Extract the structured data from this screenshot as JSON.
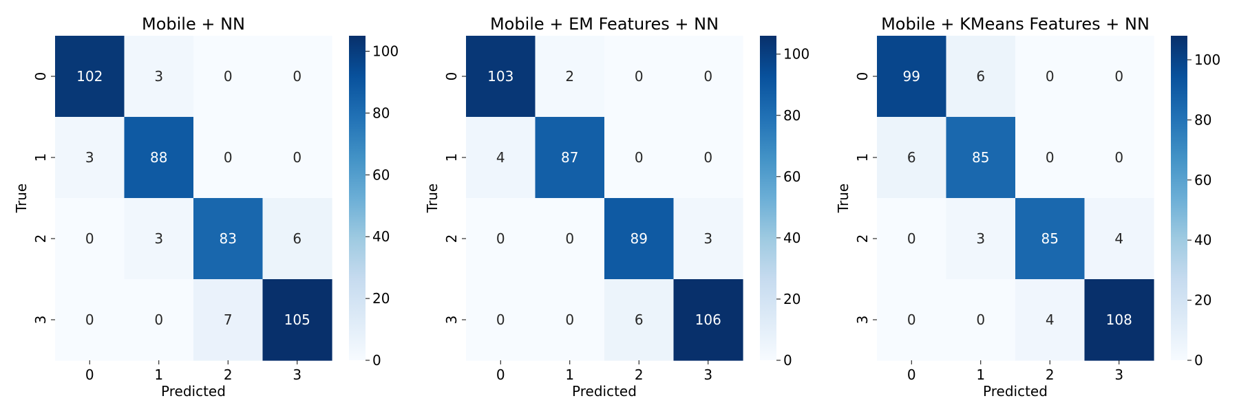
{
  "chart_data": [
    {
      "type": "heatmap",
      "title": "Mobile + NN",
      "xlabel": "Predicted",
      "ylabel": "True",
      "x_categories": [
        "0",
        "1",
        "2",
        "3"
      ],
      "y_categories": [
        "0",
        "1",
        "2",
        "3"
      ],
      "values": [
        [
          102,
          3,
          0,
          0
        ],
        [
          3,
          88,
          0,
          0
        ],
        [
          0,
          3,
          83,
          6
        ],
        [
          0,
          0,
          7,
          105
        ]
      ],
      "colorbar": {
        "range": [
          0,
          105
        ],
        "ticks": [
          0,
          20,
          40,
          60,
          80,
          100
        ]
      }
    },
    {
      "type": "heatmap",
      "title": "Mobile + EM Features + NN",
      "xlabel": "Predicted",
      "ylabel": "True",
      "x_categories": [
        "0",
        "1",
        "2",
        "3"
      ],
      "y_categories": [
        "0",
        "1",
        "2",
        "3"
      ],
      "values": [
        [
          103,
          2,
          0,
          0
        ],
        [
          4,
          87,
          0,
          0
        ],
        [
          0,
          0,
          89,
          3
        ],
        [
          0,
          0,
          6,
          106
        ]
      ],
      "colorbar": {
        "range": [
          0,
          106
        ],
        "ticks": [
          0,
          20,
          40,
          60,
          80,
          100
        ]
      }
    },
    {
      "type": "heatmap",
      "title": "Mobile + KMeans Features + NN",
      "xlabel": "Predicted",
      "ylabel": "True",
      "x_categories": [
        "0",
        "1",
        "2",
        "3"
      ],
      "y_categories": [
        "0",
        "1",
        "2",
        "3"
      ],
      "values": [
        [
          99,
          6,
          0,
          0
        ],
        [
          6,
          85,
          0,
          0
        ],
        [
          0,
          3,
          85,
          4
        ],
        [
          0,
          0,
          4,
          108
        ]
      ],
      "colorbar": {
        "range": [
          0,
          108
        ],
        "ticks": [
          0,
          20,
          40,
          60,
          80,
          100
        ]
      }
    }
  ],
  "colormap": "Blues",
  "colors": {
    "light": "#f7fbff",
    "dark": "#08306b",
    "text_dark": "#262626",
    "text_light": "#ffffff"
  }
}
